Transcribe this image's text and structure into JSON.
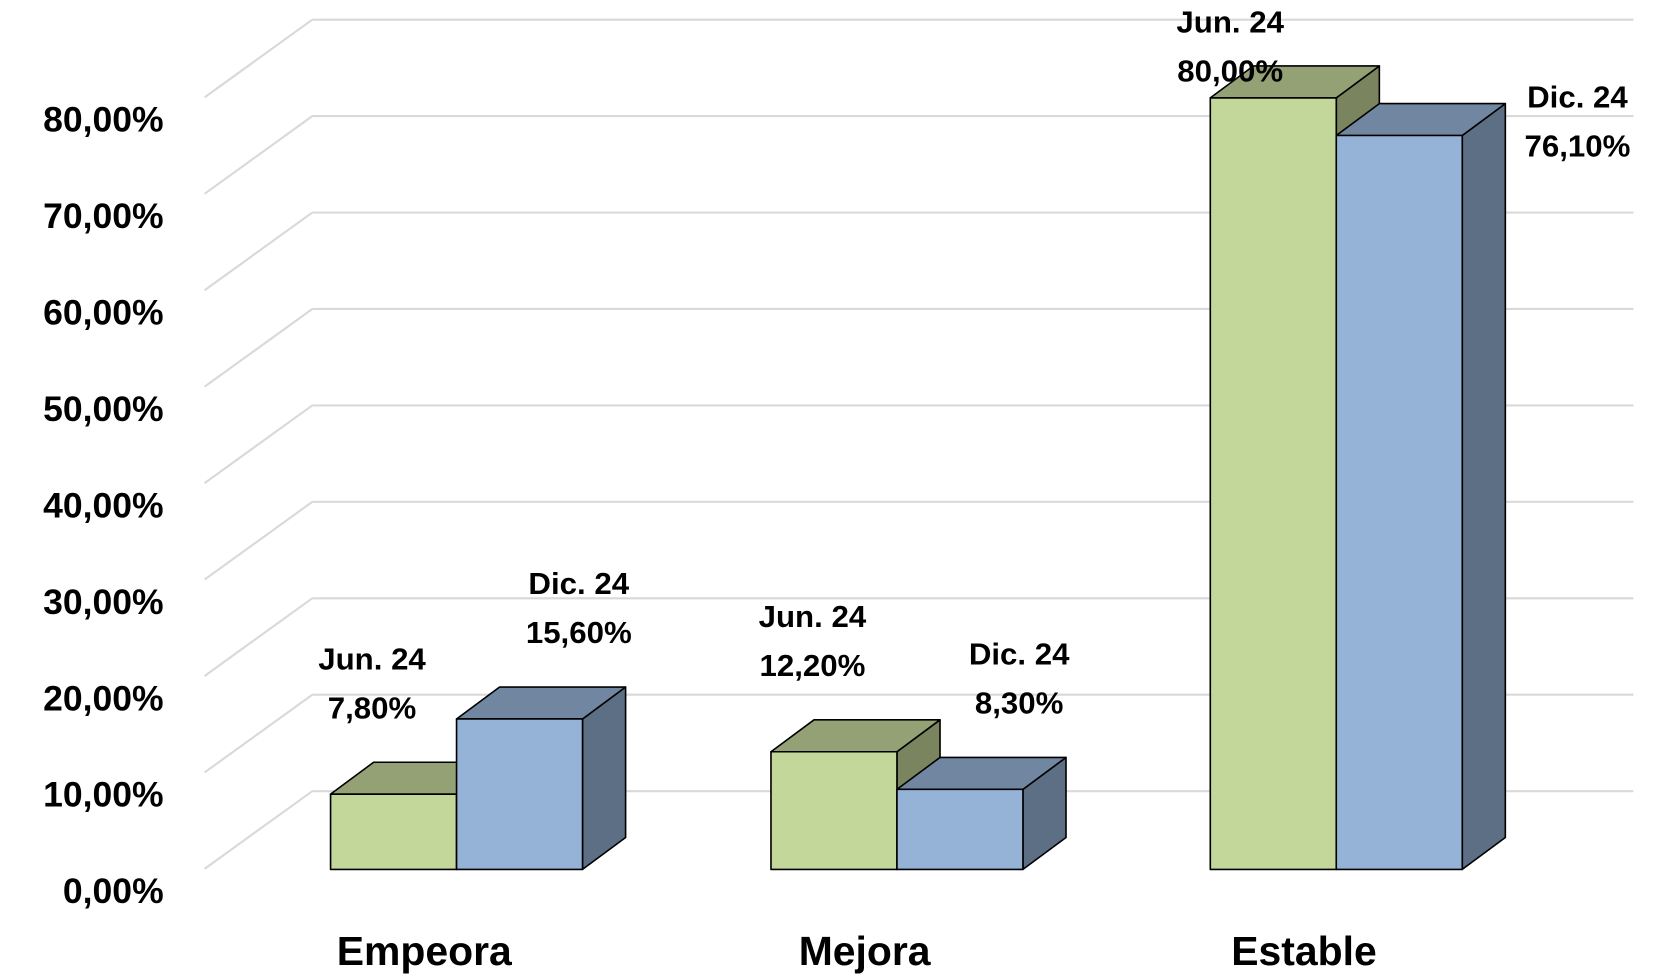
{
  "chart_data": {
    "type": "bar3d",
    "categories": [
      "Empeora",
      "Mejora",
      "Estable"
    ],
    "series": [
      {
        "name": "Jun. 24",
        "color": "#c4d79b",
        "values": [
          7.8,
          12.2,
          80.0
        ],
        "value_labels": [
          "7,80%",
          "12,20%",
          "80,00%"
        ]
      },
      {
        "name": "Dic. 24",
        "color": "#95b3d7",
        "values": [
          15.6,
          8.3,
          76.1
        ],
        "value_labels": [
          "15,60%",
          "8,30%",
          "76,10%"
        ]
      }
    ],
    "ylim": [
      0,
      80
    ],
    "yticks": [
      {
        "value": 0,
        "label": "0,00%"
      },
      {
        "value": 10,
        "label": "10,00%"
      },
      {
        "value": 20,
        "label": "20,00%"
      },
      {
        "value": 30,
        "label": "30,00%"
      },
      {
        "value": 40,
        "label": "40,00%"
      },
      {
        "value": 50,
        "label": "50,00%"
      },
      {
        "value": 60,
        "label": "60,00%"
      },
      {
        "value": 70,
        "label": "70,00%"
      },
      {
        "value": 80,
        "label": "80,00%"
      }
    ],
    "grid": true
  }
}
